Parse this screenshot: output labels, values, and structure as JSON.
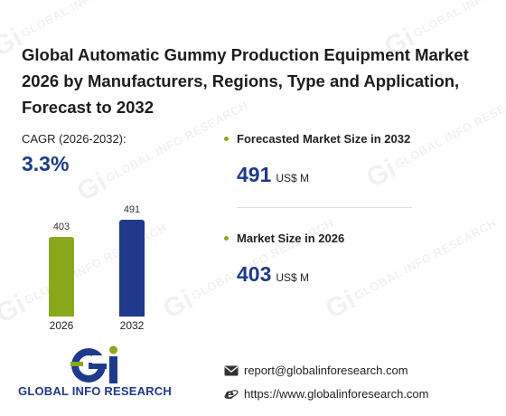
{
  "title": "Global Automatic Gummy Production Equipment Market 2026 by Manufacturers, Regions, Type and Application, Forecast to 2032",
  "cagr": {
    "label": "CAGR (2026-2032):",
    "value": "3.3%"
  },
  "chart_data": {
    "type": "bar",
    "categories": [
      "2026",
      "2032"
    ],
    "values": [
      403,
      491
    ],
    "data_labels": [
      "403",
      "491"
    ],
    "colors": [
      "#8aa81e",
      "#1f3a8a"
    ]
  },
  "stats": [
    {
      "heading": "Forecasted Market Size in 2032",
      "value": "491",
      "unit": "US$ M"
    },
    {
      "heading": "Market Size in 2026",
      "value": "403",
      "unit": "US$ M"
    }
  ],
  "brand": {
    "logo_text": "GLOBAL INFO RESEARCH",
    "watermark": "GLOBAL INFO RESEARCH",
    "logo_letters": "Gi"
  },
  "contact": {
    "email": "report@globalinforesearch.com",
    "website": "https://www.globalinforesearch.com"
  },
  "colors": {
    "accent_blue": "#1f3a8a",
    "accent_green": "#8aa81e"
  },
  "icons": {
    "email": "envelope-icon",
    "web": "internet-explorer-icon"
  }
}
